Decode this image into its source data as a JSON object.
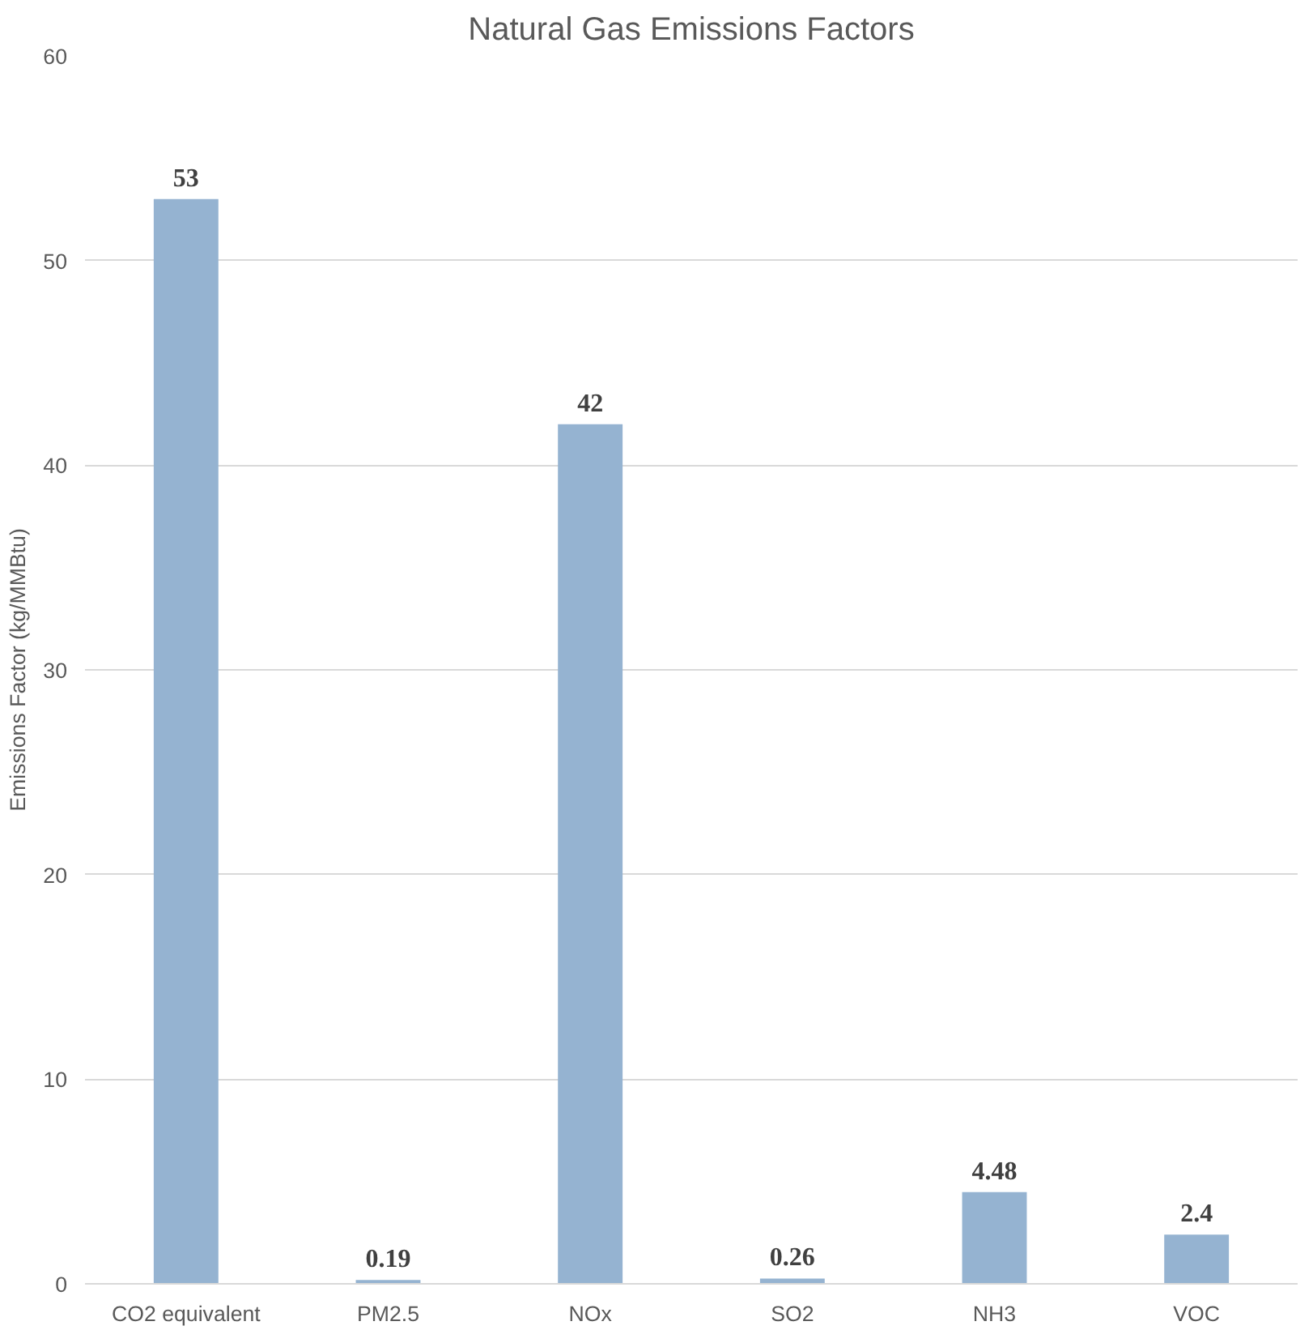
{
  "chart_data": {
    "type": "bar",
    "title": "Natural Gas Emissions Factors",
    "ylabel": "Emissions Factor (kg/MMBtu)",
    "categories": [
      "CO2 equivalent",
      "PM2.5",
      "NOx",
      "SO2",
      "NH3",
      "VOC"
    ],
    "values": [
      53,
      0.19,
      42,
      0.26,
      4.48,
      2.4
    ],
    "color": "#95b3d1",
    "ylim": [
      0,
      60
    ],
    "yticks": [
      0,
      10,
      20,
      30,
      40,
      50,
      60
    ],
    "grid": "y",
    "data_labels": true
  }
}
